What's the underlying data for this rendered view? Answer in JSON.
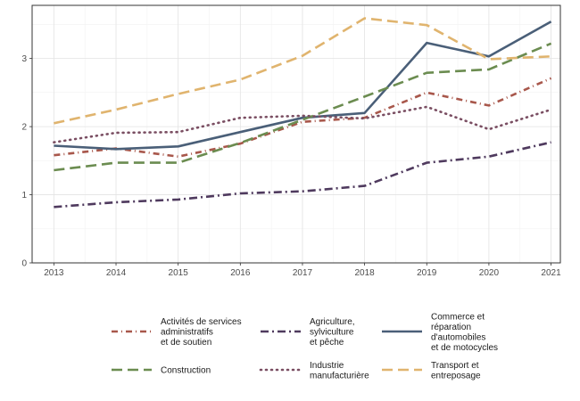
{
  "chart_data": {
    "type": "line",
    "title": "",
    "xlabel": "",
    "ylabel": "",
    "x": [
      "2013",
      "2014",
      "2015",
      "2016",
      "2017",
      "2018",
      "2019",
      "2020",
      "2021"
    ],
    "xlim": [
      2012.65,
      2021.15
    ],
    "ylim": [
      0,
      3.78
    ],
    "yticks": [
      0,
      1,
      2,
      3
    ],
    "grid": true,
    "legend_position": "bottom",
    "series": [
      {
        "name": "Activités de services administratifs et de soutien",
        "label_lines": [
          "Activités de services",
          "administratifs",
          "et de soutien"
        ],
        "color": "#a8574b",
        "dash": "dash-dot",
        "values": [
          1.58,
          1.68,
          1.56,
          1.75,
          2.07,
          2.13,
          2.5,
          2.31,
          2.71
        ]
      },
      {
        "name": "Agriculture, sylviculture et pêche",
        "label_lines": [
          "Agriculture,",
          "sylviculture",
          "et pêche"
        ],
        "color": "#4f3a5e",
        "dash": "long-dash-dot",
        "values": [
          0.82,
          0.89,
          0.93,
          1.02,
          1.05,
          1.13,
          1.47,
          1.56,
          1.77
        ]
      },
      {
        "name": "Commerce et réparation d'automobiles et de motocycles",
        "label_lines": [
          "Commerce et",
          "réparation",
          "d'automobiles",
          "et de motocycles"
        ],
        "color": "#4a5f78",
        "dash": "solid",
        "values": [
          1.72,
          1.67,
          1.71,
          1.92,
          2.13,
          2.2,
          3.23,
          3.03,
          3.54
        ]
      },
      {
        "name": "Construction",
        "label_lines": [
          "Construction"
        ],
        "color": "#6b8c50",
        "dash": "dashed",
        "values": [
          1.36,
          1.47,
          1.47,
          1.76,
          2.1,
          2.44,
          2.79,
          2.84,
          3.22
        ]
      },
      {
        "name": "Industrie manufacturière",
        "label_lines": [
          "Industrie",
          "manufacturière"
        ],
        "color": "#7a4e62",
        "dash": "dotted",
        "values": [
          1.77,
          1.91,
          1.92,
          2.13,
          2.16,
          2.12,
          2.29,
          1.96,
          2.25
        ]
      },
      {
        "name": "Transport et entreposage",
        "label_lines": [
          "Transport et",
          "entreposage"
        ],
        "color": "#e0b46e",
        "dash": "long-dash",
        "values": [
          2.05,
          2.25,
          2.48,
          2.69,
          3.04,
          3.59,
          3.49,
          2.99,
          3.03
        ]
      }
    ]
  }
}
